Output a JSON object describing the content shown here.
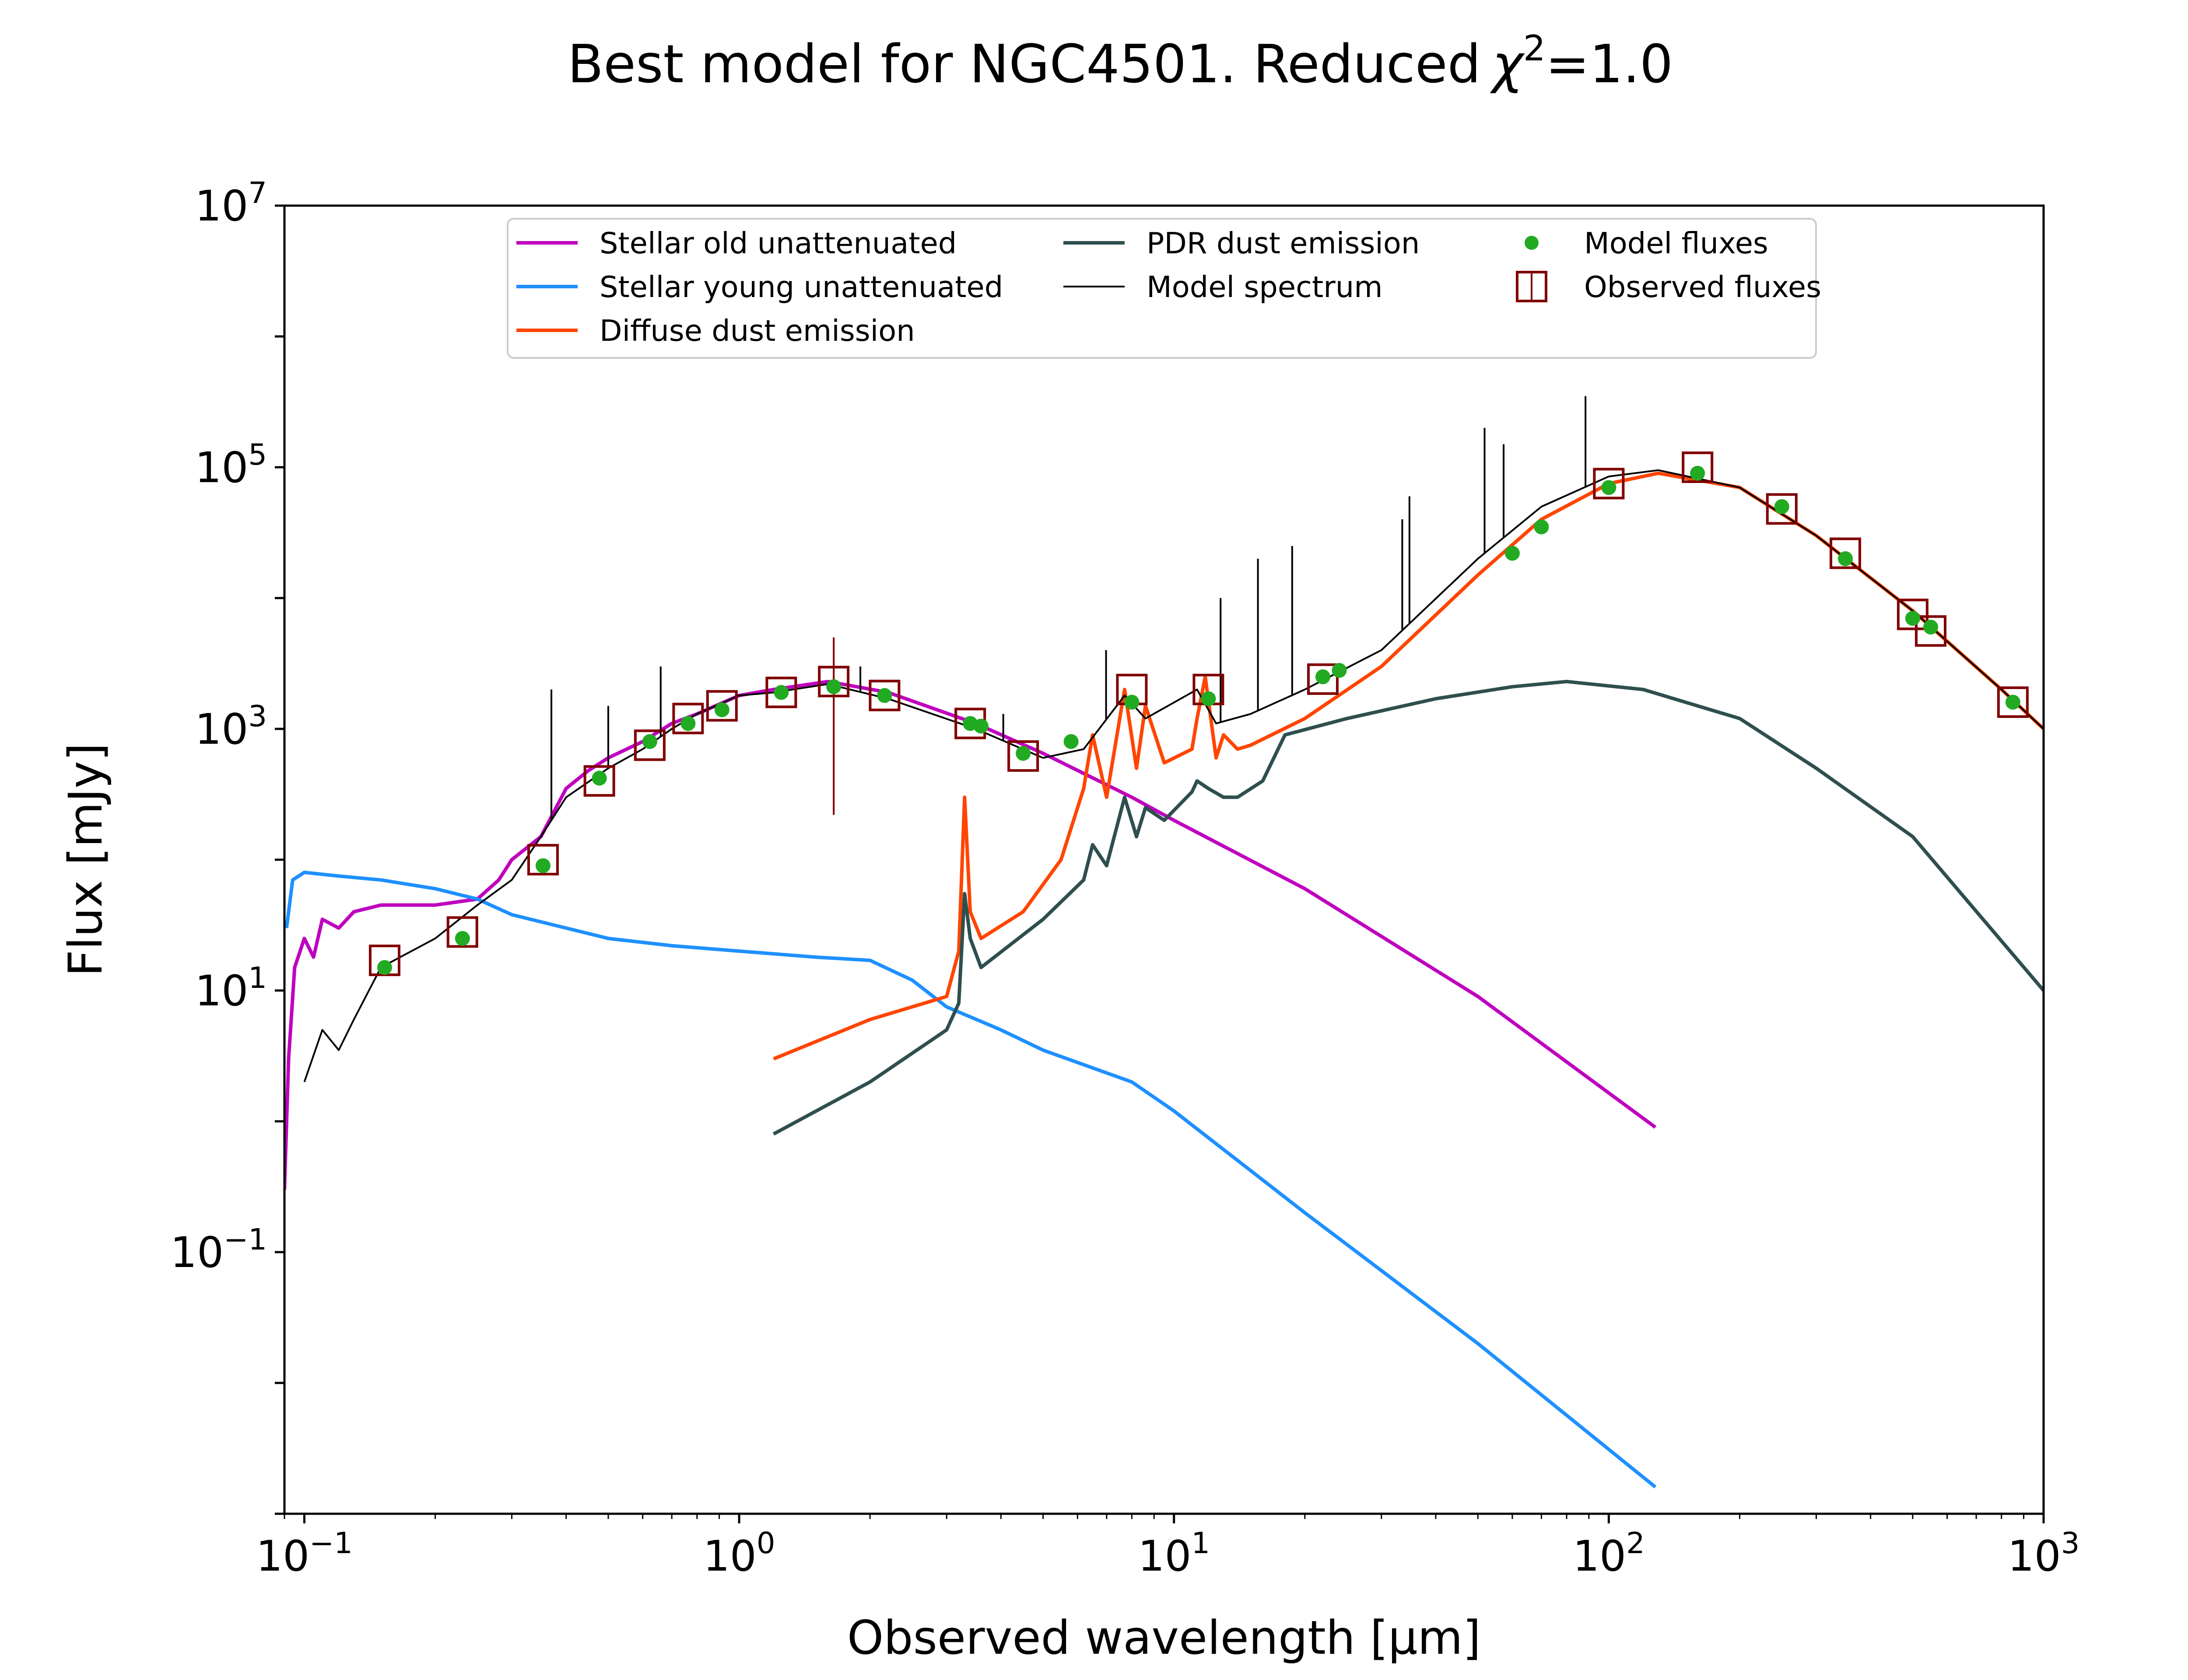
{
  "chart_data": {
    "type": "line",
    "title_main": "Best model for NGC4501. Reduced",
    "title_chi": "χ",
    "title_chi_sup": "2",
    "title_value": "=1.0",
    "xlabel": "Observed wavelength [μm]",
    "ylabel": "Flux [mJy]",
    "x_scale": "log",
    "y_scale": "log",
    "xlim": [
      0.09,
      1000
    ],
    "ylim": [
      0.001,
      10000000
    ],
    "x_ticks": [
      {
        "base": "10",
        "exp": "−1",
        "value": 0.1
      },
      {
        "base": "10",
        "exp": "0",
        "value": 1
      },
      {
        "base": "10",
        "exp": "1",
        "value": 10
      },
      {
        "base": "10",
        "exp": "2",
        "value": 100
      },
      {
        "base": "10",
        "exp": "3",
        "value": 1000
      }
    ],
    "y_ticks": [
      {
        "base": "10",
        "exp": "−1",
        "value": 0.1
      },
      {
        "base": "10",
        "exp": "1",
        "value": 10
      },
      {
        "base": "10",
        "exp": "3",
        "value": 1000
      },
      {
        "base": "10",
        "exp": "5",
        "value": 100000
      },
      {
        "base": "10",
        "exp": "7",
        "value": 10000000
      }
    ],
    "grid": false,
    "legend_position": "top-center",
    "legend_entries": [
      {
        "label": "Stellar old unattenuated",
        "color": "#bf00bf",
        "marker": "line"
      },
      {
        "label": "Stellar young unattenuated",
        "color": "#1e90ff",
        "marker": "line"
      },
      {
        "label": "Diffuse dust emission",
        "color": "#ff4500",
        "marker": "line"
      },
      {
        "label": "PDR dust emission",
        "color": "#2f4f4f",
        "marker": "line"
      },
      {
        "label": "Model spectrum",
        "color": "#000000",
        "marker": "thin-line"
      },
      {
        "label": "Model fluxes",
        "color": "#22aa22",
        "marker": "dot"
      },
      {
        "label": "Observed fluxes",
        "color": "#800000",
        "marker": "open-square"
      }
    ],
    "series": [
      {
        "name": "Stellar old unattenuated",
        "color": "#bf00bf",
        "points": [
          [
            0.09,
            0.3
          ],
          [
            0.092,
            3
          ],
          [
            0.095,
            15
          ],
          [
            0.1,
            25
          ],
          [
            0.105,
            18
          ],
          [
            0.11,
            35
          ],
          [
            0.12,
            30
          ],
          [
            0.13,
            40
          ],
          [
            0.15,
            45
          ],
          [
            0.2,
            45
          ],
          [
            0.25,
            50
          ],
          [
            0.28,
            70
          ],
          [
            0.3,
            100
          ],
          [
            0.35,
            150
          ],
          [
            0.4,
            350
          ],
          [
            0.45,
            480
          ],
          [
            0.5,
            600
          ],
          [
            0.6,
            800
          ],
          [
            0.7,
            1100
          ],
          [
            0.8,
            1300
          ],
          [
            1,
            1800
          ],
          [
            1.2,
            2000
          ],
          [
            1.6,
            2300
          ],
          [
            2.2,
            1900
          ],
          [
            3.5,
            1100
          ],
          [
            5,
            650
          ],
          [
            8,
            300
          ],
          [
            10,
            200
          ],
          [
            20,
            60
          ],
          [
            50,
            9
          ],
          [
            128,
            0.9
          ]
        ]
      },
      {
        "name": "Stellar young unattenuated",
        "color": "#1e90ff",
        "points": [
          [
            0.091,
            30
          ],
          [
            0.094,
            70
          ],
          [
            0.1,
            80
          ],
          [
            0.12,
            75
          ],
          [
            0.15,
            70
          ],
          [
            0.2,
            60
          ],
          [
            0.25,
            50
          ],
          [
            0.3,
            38
          ],
          [
            0.4,
            30
          ],
          [
            0.5,
            25
          ],
          [
            0.7,
            22
          ],
          [
            1,
            20
          ],
          [
            1.5,
            18
          ],
          [
            2,
            17
          ],
          [
            2.5,
            12
          ],
          [
            3,
            7.5
          ],
          [
            4,
            5
          ],
          [
            5,
            3.5
          ],
          [
            8,
            2
          ],
          [
            10,
            1.2
          ],
          [
            20,
            0.2
          ],
          [
            50,
            0.02
          ],
          [
            128,
            0.0016
          ]
        ]
      },
      {
        "name": "Diffuse dust emission",
        "color": "#ff4500",
        "points": [
          [
            1.2,
            3
          ],
          [
            2,
            6
          ],
          [
            3,
            9
          ],
          [
            3.2,
            20
          ],
          [
            3.3,
            300
          ],
          [
            3.4,
            40
          ],
          [
            3.6,
            25
          ],
          [
            4.5,
            40
          ],
          [
            5.5,
            100
          ],
          [
            6.2,
            350
          ],
          [
            6.5,
            900
          ],
          [
            7,
            300
          ],
          [
            7.7,
            2000
          ],
          [
            8.2,
            500
          ],
          [
            8.6,
            1500
          ],
          [
            9.5,
            550
          ],
          [
            11,
            700
          ],
          [
            11.3,
            1200
          ],
          [
            11.8,
            2500
          ],
          [
            12.5,
            600
          ],
          [
            13,
            900
          ],
          [
            14,
            700
          ],
          [
            15,
            750
          ],
          [
            20,
            1200
          ],
          [
            30,
            3000
          ],
          [
            50,
            15000
          ],
          [
            70,
            40000
          ],
          [
            100,
            75000
          ],
          [
            130,
            90000
          ],
          [
            200,
            70000
          ],
          [
            300,
            30000
          ],
          [
            500,
            8000
          ],
          [
            800,
            2000
          ],
          [
            1000,
            1000
          ]
        ]
      },
      {
        "name": "PDR dust emission",
        "color": "#2f4f4f",
        "points": [
          [
            1.2,
            0.8
          ],
          [
            2,
            2
          ],
          [
            3,
            5
          ],
          [
            3.2,
            8
          ],
          [
            3.3,
            55
          ],
          [
            3.4,
            25
          ],
          [
            3.6,
            15
          ],
          [
            5,
            35
          ],
          [
            6.2,
            70
          ],
          [
            6.5,
            130
          ],
          [
            7,
            90
          ],
          [
            7.7,
            300
          ],
          [
            8.2,
            150
          ],
          [
            8.6,
            250
          ],
          [
            9.5,
            200
          ],
          [
            11,
            330
          ],
          [
            11.3,
            400
          ],
          [
            12,
            350
          ],
          [
            13,
            300
          ],
          [
            14,
            300
          ],
          [
            16,
            400
          ],
          [
            18,
            900
          ],
          [
            25,
            1200
          ],
          [
            40,
            1700
          ],
          [
            60,
            2100
          ],
          [
            80,
            2300
          ],
          [
            120,
            2000
          ],
          [
            200,
            1200
          ],
          [
            300,
            500
          ],
          [
            500,
            150
          ],
          [
            1000,
            10
          ]
        ]
      },
      {
        "name": "Model spectrum",
        "color": "#000000",
        "points": [
          [
            0.1,
            2
          ],
          [
            0.11,
            5
          ],
          [
            0.12,
            3.5
          ],
          [
            0.13,
            6
          ],
          [
            0.15,
            15
          ],
          [
            0.2,
            25
          ],
          [
            0.25,
            45
          ],
          [
            0.3,
            70
          ],
          [
            0.35,
            150
          ],
          [
            0.4,
            300
          ],
          [
            0.5,
            500
          ],
          [
            0.6,
            700
          ],
          [
            0.7,
            1000
          ],
          [
            0.8,
            1300
          ],
          [
            1,
            1800
          ],
          [
            1.2,
            1900
          ],
          [
            1.6,
            2200
          ],
          [
            2.2,
            1700
          ],
          [
            3.5,
            1000
          ],
          [
            5,
            600
          ],
          [
            6.2,
            700
          ],
          [
            7.7,
            1800
          ],
          [
            8.6,
            1200
          ],
          [
            11.3,
            2000
          ],
          [
            12.5,
            1100
          ],
          [
            15,
            1300
          ],
          [
            20,
            2000
          ],
          [
            30,
            4000
          ],
          [
            50,
            20000
          ],
          [
            70,
            50000
          ],
          [
            100,
            85000
          ],
          [
            130,
            95000
          ],
          [
            200,
            70000
          ],
          [
            300,
            30000
          ],
          [
            500,
            8000
          ],
          [
            800,
            2000
          ],
          [
            1000,
            1000
          ]
        ]
      }
    ],
    "emission_lines": [
      [
        0.37,
        2000
      ],
      [
        0.5,
        1500
      ],
      [
        0.66,
        3000
      ],
      [
        1.9,
        3000
      ],
      [
        4.05,
        1300
      ],
      [
        6.98,
        4000
      ],
      [
        12.8,
        10000
      ],
      [
        15.6,
        20000
      ],
      [
        18.7,
        25000
      ],
      [
        33.5,
        40000
      ],
      [
        34.8,
        60000
      ],
      [
        51.8,
        200000
      ],
      [
        57.3,
        150000
      ],
      [
        88.4,
        350000
      ]
    ],
    "model_fluxes": [
      [
        0.153,
        15
      ],
      [
        0.231,
        25
      ],
      [
        0.354,
        90
      ],
      [
        0.477,
        420
      ],
      [
        0.623,
        800
      ],
      [
        0.763,
        1100
      ],
      [
        0.913,
        1400
      ],
      [
        1.25,
        1900
      ],
      [
        1.65,
        2100
      ],
      [
        2.16,
        1800
      ],
      [
        3.4,
        1100
      ],
      [
        3.6,
        1050
      ],
      [
        4.5,
        650
      ],
      [
        5.8,
        800
      ],
      [
        8,
        1600
      ],
      [
        12,
        1700
      ],
      [
        22,
        2500
      ],
      [
        24,
        2800
      ],
      [
        60,
        22000
      ],
      [
        70,
        35000
      ],
      [
        100,
        70000
      ],
      [
        160,
        90000
      ],
      [
        250,
        50000
      ],
      [
        350,
        20000
      ],
      [
        500,
        7000
      ],
      [
        550,
        6000
      ],
      [
        850,
        1600
      ]
    ],
    "observed_fluxes": [
      [
        0.153,
        17
      ],
      [
        0.231,
        28
      ],
      [
        0.354,
        100
      ],
      [
        0.477,
        400
      ],
      [
        0.623,
        750
      ],
      [
        0.763,
        1200
      ],
      [
        0.913,
        1500
      ],
      [
        1.25,
        1900
      ],
      [
        1.65,
        2300
      ],
      [
        2.16,
        1800
      ],
      [
        3.4,
        1100
      ],
      [
        4.5,
        620
      ],
      [
        8,
        2000
      ],
      [
        12,
        2000
      ],
      [
        22,
        2400
      ],
      [
        100,
        75000
      ],
      [
        160,
        100000
      ],
      [
        250,
        48000
      ],
      [
        350,
        22000
      ],
      [
        500,
        7500
      ],
      [
        550,
        5600
      ],
      [
        850,
        1600
      ]
    ]
  }
}
